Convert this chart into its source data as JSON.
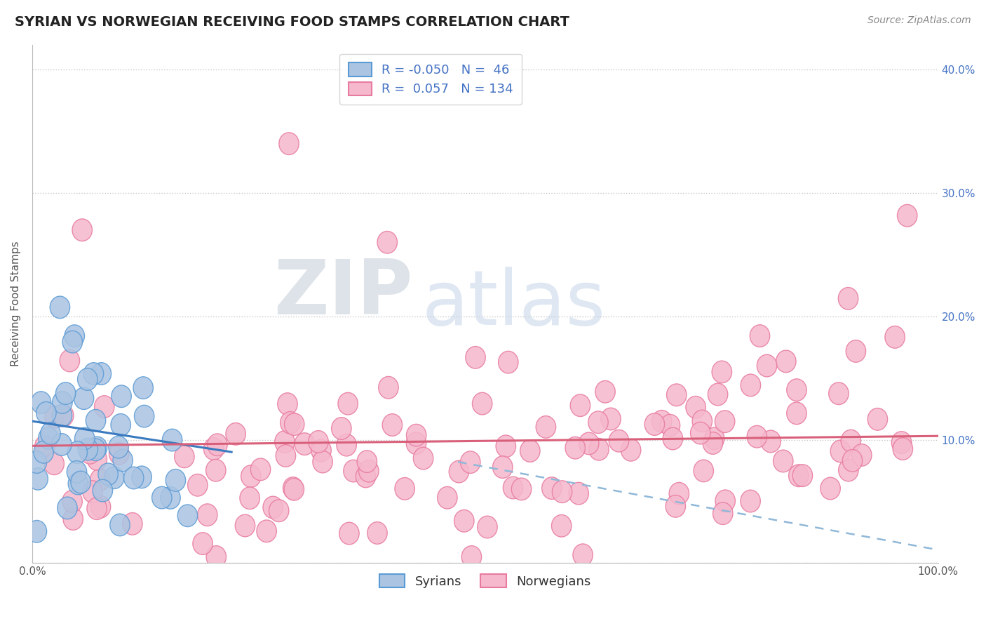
{
  "title": "SYRIAN VS NORWEGIAN RECEIVING FOOD STAMPS CORRELATION CHART",
  "source_text": "Source: ZipAtlas.com",
  "ylabel": "Receiving Food Stamps",
  "xlim": [
    0,
    1
  ],
  "ylim": [
    0,
    0.42
  ],
  "yticks": [
    0,
    0.1,
    0.2,
    0.3,
    0.4
  ],
  "ytick_labels": [
    "",
    "10.0%",
    "20.0%",
    "30.0%",
    "40.0%"
  ],
  "xticks": [
    0,
    0.1,
    0.2,
    0.3,
    0.4,
    0.5,
    0.6,
    0.7,
    0.8,
    0.9,
    1.0
  ],
  "xtick_labels": [
    "0.0%",
    "",
    "",
    "",
    "",
    "",
    "",
    "",
    "",
    "",
    "100.0%"
  ],
  "syrian_color": "#aac4e2",
  "norwegian_color": "#f5b8cc",
  "syrian_edge_color": "#5b9bd5",
  "norwegian_edge_color": "#e87aa0",
  "syrian_line_color": "#3a7abf",
  "norwegian_line_color": "#d9607a",
  "dashed_line_color": "#90b8d8",
  "legend_R_syrian": "-0.050",
  "legend_N_syrian": "46",
  "legend_R_norwegian": "0.057",
  "legend_N_norwegian": "134",
  "watermark_zip": "ZIP",
  "watermark_atlas": "atlas",
  "background_color": "#ffffff",
  "grid_color": "#c8c8c8",
  "title_color": "#222222",
  "source_color": "#888888",
  "axis_tick_color": "#555555",
  "right_tick_color": "#4472c4"
}
